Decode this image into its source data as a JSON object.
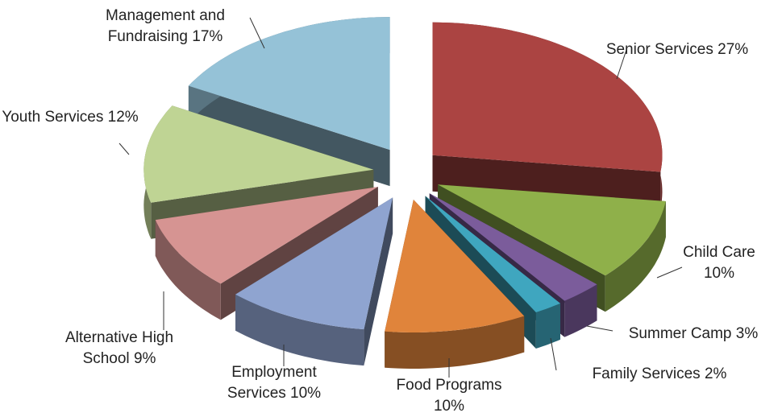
{
  "chart_data": {
    "type": "pie",
    "categories": [
      "Senior Services",
      "Child Care",
      "Summer Camp",
      "Family Services",
      "Food Programs",
      "Employment Services",
      "Alternative High School",
      "Youth Services",
      "Management and Fundraising"
    ],
    "values": [
      27,
      10,
      3,
      2,
      10,
      10,
      9,
      12,
      17
    ],
    "value_labels": [
      "27%",
      "10%",
      "3%",
      "2%",
      "10%",
      "10%",
      "9%",
      "12%",
      "17%"
    ],
    "colors": [
      "#ab4442",
      "#8fb04a",
      "#7b5c9b",
      "#3fa6bf",
      "#e0843b",
      "#8fa4d0",
      "#d69492",
      "#bfd494",
      "#95c2d7"
    ]
  }
}
